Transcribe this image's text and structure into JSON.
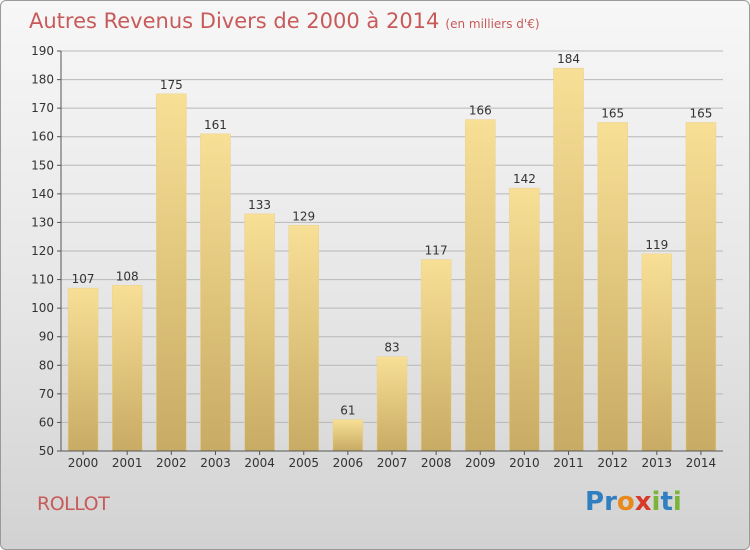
{
  "title": "Autres Revenus Divers de 2000 à 2014",
  "title_unit": "(en milliers d'€)",
  "commune": "ROLLOT",
  "logo": {
    "text": "Proxiti",
    "letters": [
      {
        "ch": "P",
        "color": "#2f7fc1"
      },
      {
        "ch": "r",
        "color": "#2f7fc1"
      },
      {
        "ch": "o",
        "color": "#e8891a"
      },
      {
        "ch": "x",
        "color": "#d83a2a"
      },
      {
        "ch": "i",
        "color": "#7ab53a"
      },
      {
        "ch": "t",
        "color": "#2f7fc1"
      },
      {
        "ch": "i",
        "color": "#7ab53a"
      }
    ]
  },
  "colors": {
    "title": "#c85a5a",
    "bar_top": "#f8df96",
    "bar_bottom": "#c8ab64",
    "grid": "#b8b8b8",
    "axis": "#555555",
    "text": "#333333"
  },
  "chart_data": {
    "type": "bar",
    "categories": [
      "2000",
      "2001",
      "2002",
      "2003",
      "2004",
      "2005",
      "2006",
      "2007",
      "2008",
      "2009",
      "2010",
      "2011",
      "2012",
      "2013",
      "2014"
    ],
    "values": [
      107,
      108,
      175,
      161,
      133,
      129,
      61,
      83,
      117,
      166,
      142,
      184,
      165,
      119,
      165
    ],
    "data_labels": [
      "107",
      "108",
      "175",
      "161",
      "133",
      "129",
      "61",
      "83",
      "117",
      "166",
      "142",
      "184",
      "165",
      "119",
      "165"
    ],
    "ylim": [
      50,
      190
    ],
    "yticks": [
      50,
      60,
      70,
      80,
      90,
      100,
      110,
      120,
      130,
      140,
      150,
      160,
      170,
      180,
      190
    ],
    "grid": true,
    "xlabel": "",
    "ylabel": ""
  }
}
